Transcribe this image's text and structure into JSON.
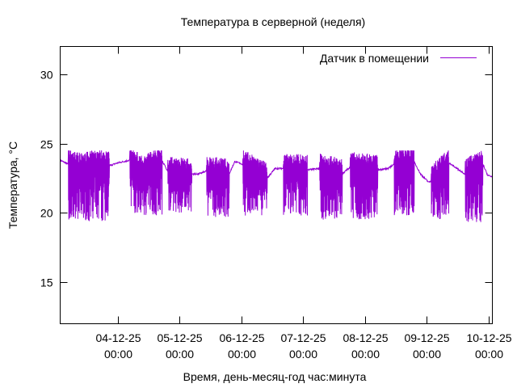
{
  "chart_data": {
    "type": "line",
    "title": "Температура в серверной (неделя)",
    "xlabel": "Время, день-месяц-год час:минута",
    "ylabel": "Температура, °C",
    "x_units": "hours since 03-12-25 01:40",
    "xlim": [
      0,
      167.8
    ],
    "ylim": [
      12,
      32
    ],
    "yticks": [
      15,
      20,
      25,
      30
    ],
    "xticks": [
      {
        "x": 22.33,
        "date": "04-12-25",
        "time": "00:00"
      },
      {
        "x": 46.33,
        "date": "05-12-25",
        "time": "00:00"
      },
      {
        "x": 70.33,
        "date": "06-12-25",
        "time": "00:00"
      },
      {
        "x": 94.33,
        "date": "07-12-25",
        "time": "00:00"
      },
      {
        "x": 118.33,
        "date": "08-12-25",
        "time": "00:00"
      },
      {
        "x": 142.33,
        "date": "09-12-25",
        "time": "00:00"
      },
      {
        "x": 166.33,
        "date": "10-12-25",
        "time": "00:00"
      }
    ],
    "grid": false,
    "legend_position": "top-right",
    "series": [
      {
        "name": "Датчик в помещении",
        "color": "#9400d3",
        "baseline": [
          [
            0,
            23.8
          ],
          [
            3.1,
            23.5
          ],
          [
            8.2,
            23.2
          ],
          [
            14.4,
            23.5
          ],
          [
            19.1,
            23.4
          ],
          [
            22.3,
            23.6
          ],
          [
            27.0,
            23.8
          ],
          [
            31.7,
            23.0
          ],
          [
            39.5,
            23.8
          ],
          [
            41.7,
            23.0
          ],
          [
            51.1,
            22.8
          ],
          [
            53.6,
            22.8
          ],
          [
            56.8,
            23.0
          ],
          [
            65.6,
            22.8
          ],
          [
            67.8,
            23.7
          ],
          [
            70.9,
            23.5
          ],
          [
            80.3,
            22.5
          ],
          [
            83.5,
            23.2
          ],
          [
            86.6,
            23.2
          ],
          [
            96.0,
            23.1
          ],
          [
            100.7,
            23.2
          ],
          [
            109.5,
            22.8
          ],
          [
            112.6,
            23.3
          ],
          [
            123.3,
            23.1
          ],
          [
            127.4,
            23.2
          ],
          [
            129.6,
            23.5
          ],
          [
            137.4,
            23.7
          ],
          [
            139.9,
            22.8
          ],
          [
            143.1,
            22.2
          ],
          [
            144.0,
            22.3
          ],
          [
            150.9,
            23.6
          ],
          [
            157.2,
            22.8
          ],
          [
            164.1,
            23.5
          ],
          [
            166.0,
            22.7
          ],
          [
            167.8,
            22.6
          ]
        ],
        "fluctuation_windows": [
          {
            "start": 3.1,
            "end": 19.1,
            "min": 19.4
          },
          {
            "start": 27.0,
            "end": 39.5,
            "min": 19.8
          },
          {
            "start": 41.7,
            "end": 51.1,
            "min": 20.0
          },
          {
            "start": 56.8,
            "end": 65.6,
            "min": 19.7
          },
          {
            "start": 70.9,
            "end": 80.3,
            "min": 19.8
          },
          {
            "start": 86.6,
            "end": 96.0,
            "min": 19.8
          },
          {
            "start": 100.7,
            "end": 109.5,
            "min": 19.5
          },
          {
            "start": 112.6,
            "end": 123.3,
            "min": 19.5
          },
          {
            "start": 129.6,
            "end": 137.4,
            "min": 19.8
          },
          {
            "start": 144.0,
            "end": 150.9,
            "min": 19.5
          },
          {
            "start": 157.2,
            "end": 164.1,
            "min": 19.3
          }
        ],
        "max_observed": 24.5
      }
    ]
  }
}
